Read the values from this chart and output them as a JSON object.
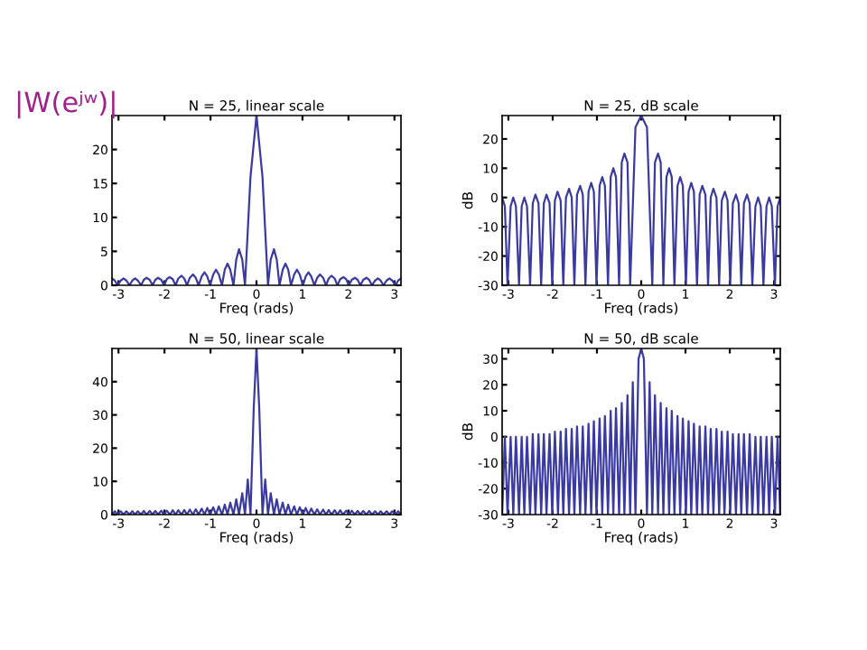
{
  "chart_data": [
    {
      "type": "line",
      "title": "N = 25, linear scale",
      "xlabel": "Freq (rads)",
      "annotations": [
        "|W(eʲʷ)|"
      ],
      "xlim": [
        -3.1416,
        3.1416
      ],
      "xticks": [
        -3,
        -2,
        -1,
        0,
        1,
        2,
        3
      ],
      "ylim": [
        0,
        25
      ],
      "yticks": [
        0,
        5,
        10,
        15,
        20
      ],
      "grid": false,
      "legend": false,
      "marker": "none",
      "line_style": "solid",
      "series": [
        {
          "color": "#3a3aa0",
          "x": [
            -3.14,
            -3.08,
            -3.02,
            -2.95,
            -2.89,
            -2.83,
            -2.76,
            -2.7,
            -2.64,
            -2.58,
            -2.51,
            -2.45,
            -2.39,
            -2.32,
            -2.26,
            -2.2,
            -2.14,
            -2.07,
            -2.01,
            -1.95,
            -1.89,
            -1.82,
            -1.76,
            -1.7,
            -1.63,
            -1.57,
            -1.51,
            -1.45,
            -1.38,
            -1.32,
            -1.26,
            -1.19,
            -1.13,
            -1.07,
            -1.01,
            -0.94,
            -0.88,
            -0.82,
            -0.75,
            -0.69,
            -0.63,
            -0.57,
            -0.5,
            -0.44,
            -0.38,
            -0.31,
            -0.25,
            -0.13,
            0,
            0.13,
            0.25,
            0.31,
            0.38,
            0.44,
            0.5,
            0.57,
            0.63,
            0.69,
            0.75,
            0.82,
            0.88,
            0.94,
            1.01,
            1.07,
            1.13,
            1.19,
            1.26,
            1.32,
            1.38,
            1.45,
            1.51,
            1.57,
            1.63,
            1.7,
            1.76,
            1.82,
            1.89,
            1.95,
            2.01,
            2.07,
            2.14,
            2.2,
            2.26,
            2.32,
            2.39,
            2.45,
            2.51,
            2.58,
            2.64,
            2.7,
            2.76,
            2.83,
            2.89,
            2.95,
            3.02,
            3.08,
            3.14
          ],
          "values": [
            1.0,
            0.7,
            0,
            0.7,
            1.0,
            0.7,
            0,
            0.7,
            1.0,
            0.7,
            0,
            0.8,
            1.1,
            0.8,
            0,
            0.8,
            1.1,
            0.8,
            0,
            0.9,
            1.2,
            0.9,
            0,
            1.0,
            1.4,
            1.0,
            0,
            1.1,
            1.6,
            1.1,
            0,
            1.3,
            1.9,
            1.3,
            0,
            1.6,
            2.3,
            1.6,
            0,
            2.3,
            3.2,
            2.3,
            0,
            3.8,
            5.3,
            3.8,
            0,
            16,
            25,
            16,
            0,
            3.8,
            5.3,
            3.8,
            0,
            2.3,
            3.2,
            2.3,
            0,
            1.6,
            2.3,
            1.6,
            0,
            1.3,
            1.9,
            1.3,
            0,
            1.1,
            1.6,
            1.1,
            0,
            1.0,
            1.4,
            1.0,
            0,
            0.9,
            1.2,
            0.9,
            0,
            0.8,
            1.1,
            0.8,
            0,
            0.8,
            1.1,
            0.8,
            0,
            0.7,
            1.0,
            0.7,
            0,
            0.7,
            1.0,
            0.7,
            0,
            0.7,
            1.0
          ]
        }
      ]
    },
    {
      "type": "line",
      "title": "N = 25, dB scale",
      "xlabel": "Freq (rads)",
      "ylabel": "dB",
      "xlim": [
        -3.1416,
        3.1416
      ],
      "xticks": [
        -3,
        -2,
        -1,
        0,
        1,
        2,
        3
      ],
      "ylim": [
        -30,
        28
      ],
      "yticks": [
        -30,
        -20,
        -10,
        0,
        10,
        20
      ],
      "grid": false,
      "legend": false,
      "marker": "none",
      "line_style": "solid",
      "series": [
        {
          "color": "#3a3aa0",
          "x": [
            -3.14,
            -3.08,
            -3.02,
            -2.95,
            -2.89,
            -2.83,
            -2.76,
            -2.7,
            -2.64,
            -2.58,
            -2.51,
            -2.45,
            -2.39,
            -2.32,
            -2.26,
            -2.2,
            -2.14,
            -2.07,
            -2.01,
            -1.95,
            -1.89,
            -1.82,
            -1.76,
            -1.7,
            -1.63,
            -1.57,
            -1.51,
            -1.45,
            -1.38,
            -1.32,
            -1.26,
            -1.19,
            -1.13,
            -1.07,
            -1.01,
            -0.94,
            -0.88,
            -0.82,
            -0.75,
            -0.69,
            -0.63,
            -0.57,
            -0.5,
            -0.44,
            -0.38,
            -0.31,
            -0.25,
            -0.13,
            0,
            0.13,
            0.25,
            0.31,
            0.38,
            0.44,
            0.5,
            0.57,
            0.63,
            0.69,
            0.75,
            0.82,
            0.88,
            0.94,
            1.01,
            1.07,
            1.13,
            1.19,
            1.26,
            1.32,
            1.38,
            1.45,
            1.51,
            1.57,
            1.63,
            1.7,
            1.76,
            1.82,
            1.89,
            1.95,
            2.01,
            2.07,
            2.14,
            2.2,
            2.26,
            2.32,
            2.39,
            2.45,
            2.51,
            2.58,
            2.64,
            2.7,
            2.76,
            2.83,
            2.89,
            2.95,
            3.02,
            3.08,
            3.14
          ],
          "values": [
            0,
            -3,
            -30,
            -3,
            0,
            -3,
            -30,
            -3,
            0,
            -3,
            -30,
            -2,
            1,
            -2,
            -30,
            -2,
            1,
            -2,
            -30,
            -1,
            2,
            -1,
            -30,
            0,
            3,
            0,
            -30,
            1,
            4,
            1,
            -30,
            2,
            5,
            2,
            -30,
            4,
            7,
            4,
            -30,
            7,
            10,
            7,
            -30,
            12,
            15,
            12,
            -30,
            24,
            28,
            24,
            -30,
            12,
            15,
            12,
            -30,
            7,
            10,
            7,
            -30,
            4,
            7,
            4,
            -30,
            2,
            5,
            2,
            -30,
            1,
            4,
            1,
            -30,
            0,
            3,
            0,
            -30,
            -1,
            2,
            -1,
            -30,
            -2,
            1,
            -2,
            -30,
            -2,
            1,
            -2,
            -30,
            -3,
            0,
            -3,
            -30,
            -3,
            0,
            -3,
            -30,
            -3,
            0
          ]
        }
      ]
    },
    {
      "type": "line",
      "title": "N = 50, linear scale",
      "xlabel": "Freq (rads)",
      "xlim": [
        -3.1416,
        3.1416
      ],
      "xticks": [
        -3,
        -2,
        -1,
        0,
        1,
        2,
        3
      ],
      "ylim": [
        0,
        50
      ],
      "yticks": [
        0,
        10,
        20,
        30,
        40
      ],
      "grid": false,
      "legend": false,
      "marker": "none",
      "line_style": "solid",
      "series": [
        {
          "color": "#3a3aa0",
          "x": [
            -3.14,
            -3.08,
            -3.02,
            -2.95,
            -2.89,
            -2.83,
            -2.76,
            -2.7,
            -2.64,
            -2.58,
            -2.51,
            -2.45,
            -2.39,
            -2.32,
            -2.26,
            -2.2,
            -2.14,
            -2.07,
            -2.01,
            -1.95,
            -1.88,
            -1.82,
            -1.76,
            -1.7,
            -1.63,
            -1.57,
            -1.51,
            -1.45,
            -1.38,
            -1.32,
            -1.26,
            -1.19,
            -1.13,
            -1.07,
            -1.01,
            -0.94,
            -0.88,
            -0.82,
            -0.75,
            -0.69,
            -0.63,
            -0.57,
            -0.5,
            -0.44,
            -0.38,
            -0.31,
            -0.25,
            -0.19,
            -0.13,
            -0.06,
            0,
            0.06,
            0.13,
            0.19,
            0.25,
            0.31,
            0.38,
            0.44,
            0.5,
            0.57,
            0.63,
            0.69,
            0.75,
            0.82,
            0.88,
            0.94,
            1.01,
            1.07,
            1.13,
            1.19,
            1.26,
            1.32,
            1.38,
            1.45,
            1.51,
            1.57,
            1.63,
            1.7,
            1.76,
            1.82,
            1.88,
            1.95,
            2.01,
            2.07,
            2.14,
            2.2,
            2.26,
            2.32,
            2.39,
            2.45,
            2.51,
            2.58,
            2.64,
            2.7,
            2.76,
            2.83,
            2.89,
            2.95,
            3.02,
            3.08,
            3.14
          ],
          "values": [
            0,
            1.0,
            0,
            1.0,
            0,
            1.0,
            0,
            1.0,
            0,
            1.0,
            0,
            1.1,
            0,
            1.1,
            0,
            1.1,
            0,
            1.2,
            0,
            1.2,
            0,
            1.3,
            0,
            1.3,
            0,
            1.4,
            0,
            1.5,
            0,
            1.6,
            0,
            1.8,
            0,
            2.0,
            0,
            2.2,
            0,
            2.5,
            0,
            3.0,
            0,
            3.6,
            0,
            4.6,
            0,
            6.4,
            0,
            10.6,
            0,
            32,
            50,
            32,
            0,
            10.6,
            0,
            6.4,
            0,
            4.6,
            0,
            3.6,
            0,
            3.0,
            0,
            2.5,
            0,
            2.2,
            0,
            2.0,
            0,
            1.8,
            0,
            1.6,
            0,
            1.5,
            0,
            1.4,
            0,
            1.3,
            0,
            1.3,
            0,
            1.2,
            0,
            1.2,
            0,
            1.1,
            0,
            1.1,
            0,
            1.1,
            0,
            1.0,
            0,
            1.0,
            0,
            1.0,
            0,
            1.0,
            0,
            1.0,
            0
          ]
        }
      ]
    },
    {
      "type": "line",
      "title": "N = 50, dB scale",
      "xlabel": "Freq (rads)",
      "ylabel": "dB",
      "xlim": [
        -3.1416,
        3.1416
      ],
      "xticks": [
        -3,
        -2,
        -1,
        0,
        1,
        2,
        3
      ],
      "ylim": [
        -30,
        34
      ],
      "yticks": [
        -30,
        -20,
        -10,
        0,
        10,
        20,
        30
      ],
      "grid": false,
      "legend": false,
      "marker": "none",
      "line_style": "solid",
      "series": [
        {
          "color": "#3a3aa0",
          "x": [
            -3.14,
            -3.08,
            -3.02,
            -2.95,
            -2.89,
            -2.83,
            -2.76,
            -2.7,
            -2.64,
            -2.58,
            -2.51,
            -2.45,
            -2.39,
            -2.32,
            -2.26,
            -2.2,
            -2.14,
            -2.07,
            -2.01,
            -1.95,
            -1.88,
            -1.82,
            -1.76,
            -1.7,
            -1.63,
            -1.57,
            -1.51,
            -1.45,
            -1.38,
            -1.32,
            -1.26,
            -1.19,
            -1.13,
            -1.07,
            -1.01,
            -0.94,
            -0.88,
            -0.82,
            -0.75,
            -0.69,
            -0.63,
            -0.57,
            -0.5,
            -0.44,
            -0.38,
            -0.31,
            -0.25,
            -0.19,
            -0.13,
            -0.06,
            0,
            0.06,
            0.13,
            0.19,
            0.25,
            0.31,
            0.38,
            0.44,
            0.5,
            0.57,
            0.63,
            0.69,
            0.75,
            0.82,
            0.88,
            0.94,
            1.01,
            1.07,
            1.13,
            1.19,
            1.26,
            1.32,
            1.38,
            1.45,
            1.51,
            1.57,
            1.63,
            1.7,
            1.76,
            1.82,
            1.88,
            1.95,
            2.01,
            2.07,
            2.14,
            2.2,
            2.26,
            2.32,
            2.39,
            2.45,
            2.51,
            2.58,
            2.64,
            2.7,
            2.76,
            2.83,
            2.89,
            2.95,
            3.02,
            3.08,
            3.14
          ],
          "values": [
            -30,
            0,
            -30,
            0,
            -30,
            0,
            -30,
            0,
            -30,
            0,
            -30,
            1,
            -30,
            1,
            -30,
            1,
            -30,
            1,
            -30,
            2,
            -30,
            2,
            -30,
            3,
            -30,
            3,
            -30,
            4,
            -30,
            4,
            -30,
            5,
            -30,
            6,
            -30,
            7,
            -30,
            8,
            -30,
            10,
            -30,
            11,
            -30,
            13,
            -30,
            16,
            -30,
            21,
            -30,
            30,
            34,
            30,
            -30,
            21,
            -30,
            16,
            -30,
            13,
            -30,
            11,
            -30,
            10,
            -30,
            8,
            -30,
            7,
            -30,
            6,
            -30,
            5,
            -30,
            4,
            -30,
            4,
            -30,
            3,
            -30,
            3,
            -30,
            2,
            -30,
            2,
            -30,
            1,
            -30,
            1,
            -30,
            1,
            -30,
            1,
            -30,
            0,
            -30,
            0,
            -30,
            0,
            -30,
            0,
            -30,
            0,
            -30
          ]
        }
      ]
    }
  ]
}
